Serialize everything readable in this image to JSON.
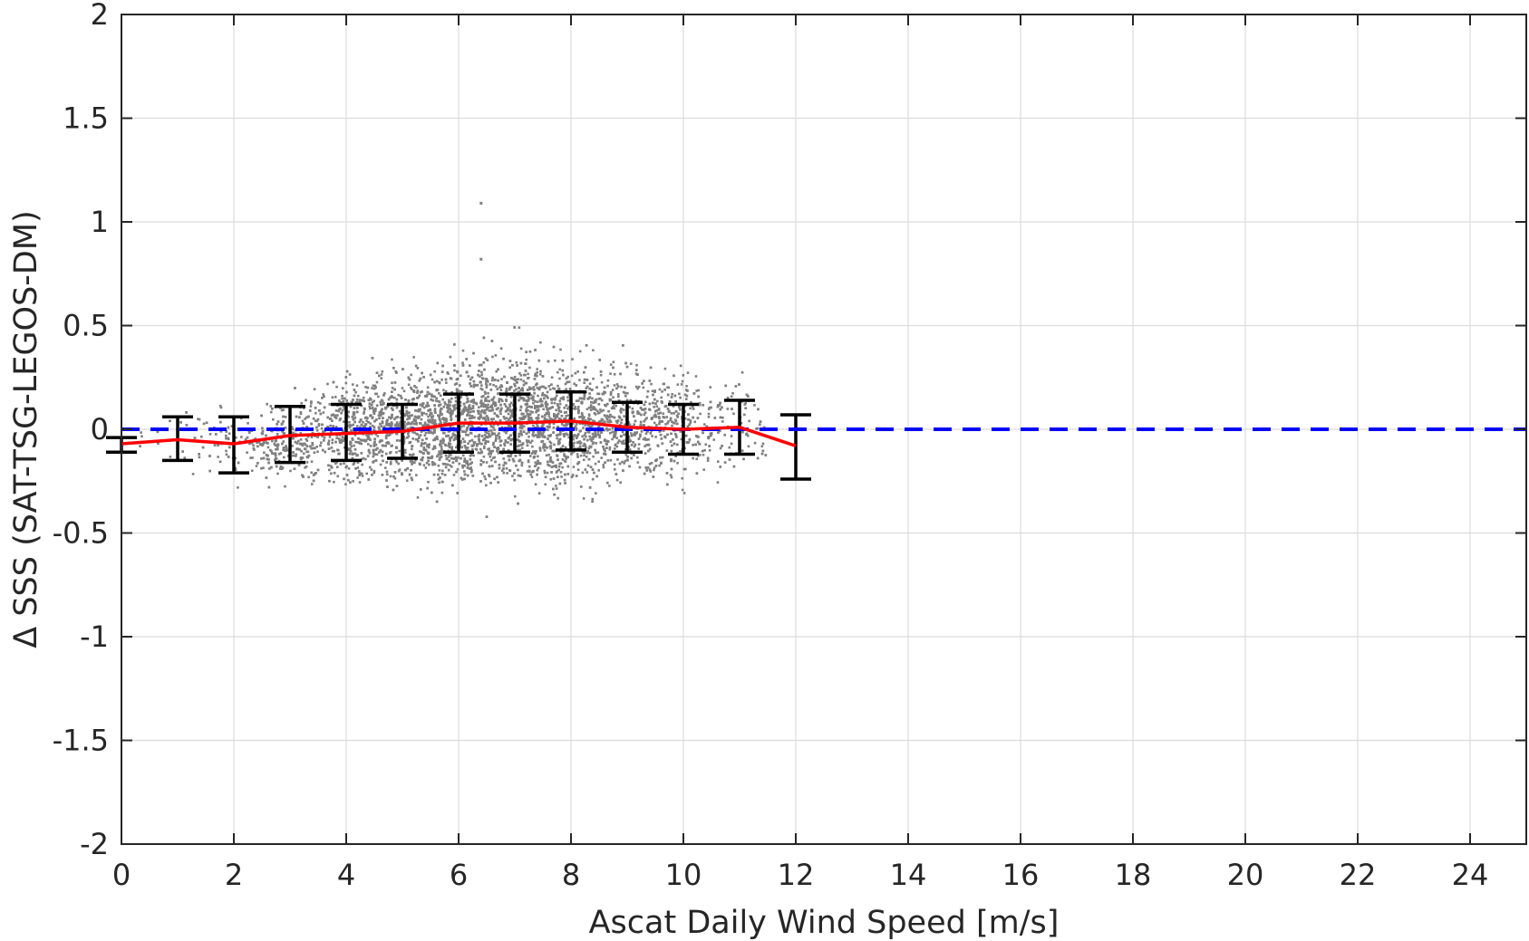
{
  "chart_data": {
    "type": "scatter",
    "title": "",
    "xlabel": "Ascat Daily Wind Speed [m/s]",
    "ylabel": "Δ SSS (SAT-TSG-LEGOS-DM)",
    "xlim": [
      0,
      25
    ],
    "ylim": [
      -2,
      2
    ],
    "xticks": [
      0,
      2,
      4,
      6,
      8,
      10,
      12,
      14,
      16,
      18,
      20,
      22,
      24
    ],
    "xtick_labels": [
      "0",
      "2",
      "4",
      "6",
      "8",
      "10",
      "12",
      "14",
      "16",
      "18",
      "20",
      "22",
      "24"
    ],
    "yticks": [
      2,
      1.5,
      1,
      0.5,
      0,
      -0.5,
      -1,
      -1.5,
      -2
    ],
    "ytick_labels": [
      "2",
      "1.5",
      "1",
      "0.5",
      "0",
      "-0.5",
      "-1",
      "-1.5",
      "-2"
    ],
    "grid": true,
    "legend": "none",
    "scatter_color": "#808080",
    "scatter_envelope": {
      "x": [
        0,
        0.5,
        1,
        1.5,
        2,
        2.5,
        3,
        3.5,
        4,
        4.5,
        5,
        5.5,
        6,
        6.5,
        7,
        7.5,
        8,
        8.5,
        9,
        9.5,
        10,
        10.5,
        11,
        11.5
      ],
      "y_low": [
        -0.1,
        -0.15,
        -0.2,
        -0.24,
        -0.3,
        -0.32,
        -0.34,
        -0.36,
        -0.38,
        -0.4,
        -0.4,
        -0.41,
        -0.42,
        -0.42,
        -0.43,
        -0.44,
        -0.43,
        -0.42,
        -0.4,
        -0.38,
        -0.35,
        -0.33,
        -0.3,
        -0.32
      ],
      "y_high": [
        0.05,
        0.12,
        0.18,
        0.25,
        0.22,
        0.22,
        0.26,
        0.32,
        0.4,
        0.42,
        0.46,
        0.48,
        0.52,
        0.55,
        0.58,
        0.55,
        0.52,
        0.48,
        0.5,
        0.48,
        0.42,
        0.4,
        0.45,
        0.28
      ]
    },
    "outliers": [
      {
        "x": 6.4,
        "y": 1.09
      },
      {
        "x": 6.4,
        "y": 0.82
      }
    ],
    "error_bars": {
      "color": "#000000",
      "x": [
        0,
        1,
        2,
        3,
        4,
        5,
        6,
        7,
        8,
        9,
        10,
        11,
        12
      ],
      "y_low": [
        -0.11,
        -0.15,
        -0.21,
        -0.16,
        -0.15,
        -0.14,
        -0.11,
        -0.11,
        -0.1,
        -0.11,
        -0.12,
        -0.12,
        -0.24
      ],
      "y_high": [
        -0.04,
        0.06,
        0.06,
        0.11,
        0.12,
        0.12,
        0.17,
        0.17,
        0.18,
        0.13,
        0.12,
        0.14,
        0.07
      ]
    },
    "series": [
      {
        "type": "line",
        "color": "#ff0000",
        "x": [
          0,
          1,
          2,
          3,
          4,
          5,
          6,
          7,
          8,
          9,
          10,
          11,
          12
        ],
        "values": [
          -0.07,
          -0.05,
          -0.07,
          -0.03,
          -0.02,
          -0.01,
          0.03,
          0.03,
          0.04,
          0.01,
          0.0,
          0.01,
          -0.08
        ]
      }
    ],
    "reference_line": {
      "y": 0,
      "color": "#0000ff",
      "style": "dashed"
    }
  }
}
